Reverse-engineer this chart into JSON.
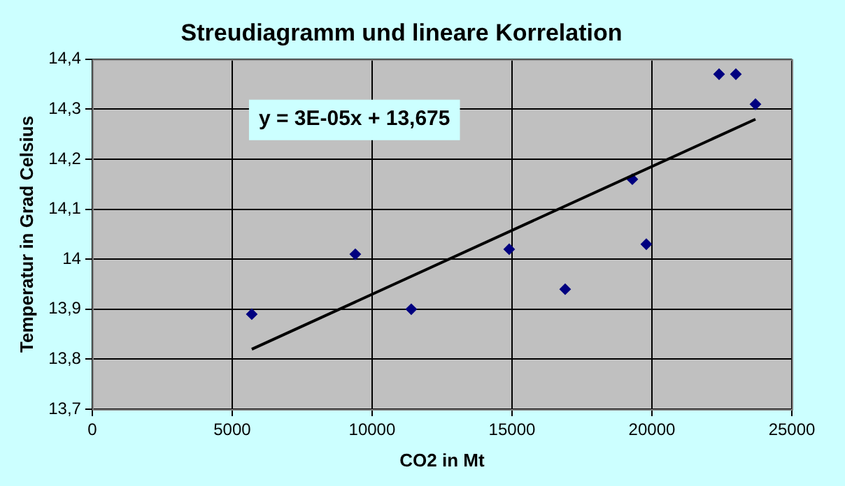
{
  "chart_data": {
    "type": "scatter",
    "title": "Streudiagramm und lineare Korrelation",
    "xlabel": "CO2 in Mt",
    "ylabel": "Temperatur in Grad Celsius",
    "annotations": [
      "y = 3E-05x + 13,675"
    ],
    "series": [
      {
        "color": "#000080",
        "x": [
          5700,
          9400,
          11400,
          14900,
          16900,
          19300,
          19800,
          22400,
          23000,
          23700
        ],
        "values": [
          13.89,
          14.01,
          13.9,
          14.02,
          13.94,
          14.16,
          14.03,
          14.37,
          14.37,
          14.31
        ]
      },
      {
        "type": "line",
        "marker": "none",
        "color": "#000000",
        "x": [
          5700,
          23700
        ],
        "values": [
          13.82,
          14.28
        ]
      }
    ],
    "xlim": [
      0,
      25000
    ],
    "xticks": [
      0,
      5000,
      10000,
      15000,
      20000,
      25000
    ],
    "ylim": [
      13.7,
      14.4
    ],
    "yticks": [
      {
        "value": 13.7,
        "label": "13,7"
      },
      {
        "value": 13.8,
        "label": "13,8"
      },
      {
        "value": 13.9,
        "label": "13,9"
      },
      14,
      {
        "value": 14.1,
        "label": "14,1"
      },
      {
        "value": 14.2,
        "label": "14,2"
      },
      {
        "value": 14.3,
        "label": "14,3"
      },
      {
        "value": 14.4,
        "label": "14,4"
      }
    ],
    "grid": true,
    "legend": false,
    "marker": "diamond"
  }
}
